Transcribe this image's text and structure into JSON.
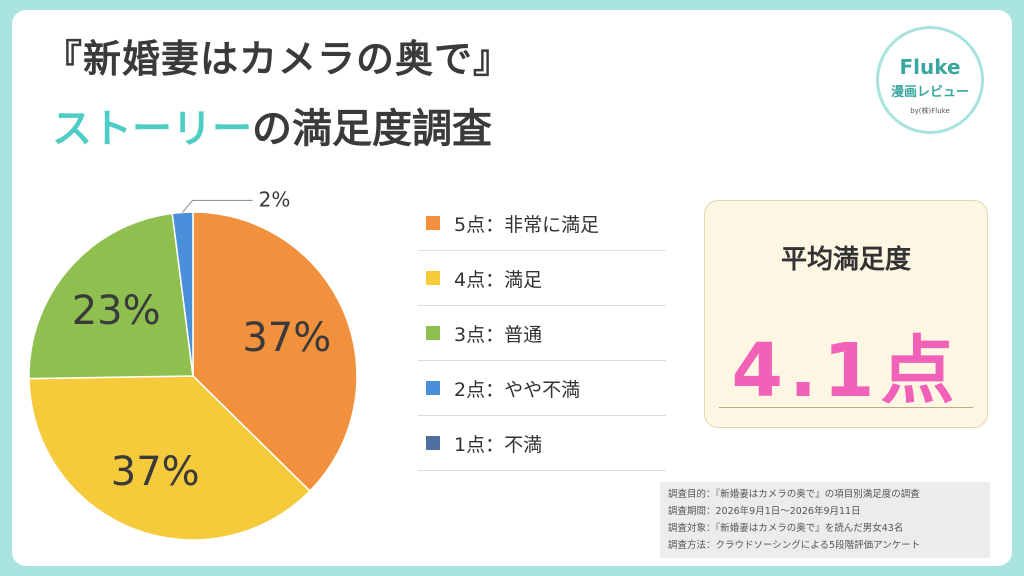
{
  "header": {
    "title_line1": "『新婚妻はカメラの奥で』",
    "title_line2_accent": "ストーリー",
    "title_line2_rest": "の満足度調査"
  },
  "logo": {
    "name": "Fluke",
    "subtitle": "漫画レビュー",
    "byline": "by(株)Fluke"
  },
  "chart_data": {
    "type": "pie",
    "slices": [
      {
        "label": "5点：非常に満足",
        "value": 37,
        "color": "#f2913d"
      },
      {
        "label": "4点：満足",
        "value": 37,
        "color": "#f5cb3c"
      },
      {
        "label": "3点：普通",
        "value": 23,
        "color": "#8fc04f"
      },
      {
        "label": "2点：やや不満",
        "value": 2,
        "color": "#4a8fd9"
      },
      {
        "label": "1点：不満",
        "value": 0,
        "color": "#4f6f9e"
      }
    ],
    "data_labels": [
      "37%",
      "37%",
      "23%",
      "2%"
    ],
    "legend_placement": "right"
  },
  "legend": {
    "items": [
      {
        "label": "5点：非常に満足",
        "color": "#f2913d"
      },
      {
        "label": "4点：満足",
        "color": "#f5cb3c"
      },
      {
        "label": "3点：普通",
        "color": "#8fc04f"
      },
      {
        "label": "2点：やや不満",
        "color": "#4a8fd9"
      },
      {
        "label": "1点：不満",
        "color": "#4f6f9e"
      }
    ]
  },
  "average": {
    "title": "平均満足度",
    "value": "4.1点"
  },
  "notes": [
    "調査目的：『新婚妻はカメラの奥で』の項目別満足度の調査",
    "調査期間：2026年9月1日～2026年9月11日",
    "調査対象：『新婚妻はカメラの奥で』を読んだ男女43名",
    "調査方法：クラウドソーシングによる5段階評価アンケート"
  ],
  "colors": {
    "background": "#a8e3e0",
    "accent": "#4ecdc4",
    "avg_value": "#f261b8"
  }
}
